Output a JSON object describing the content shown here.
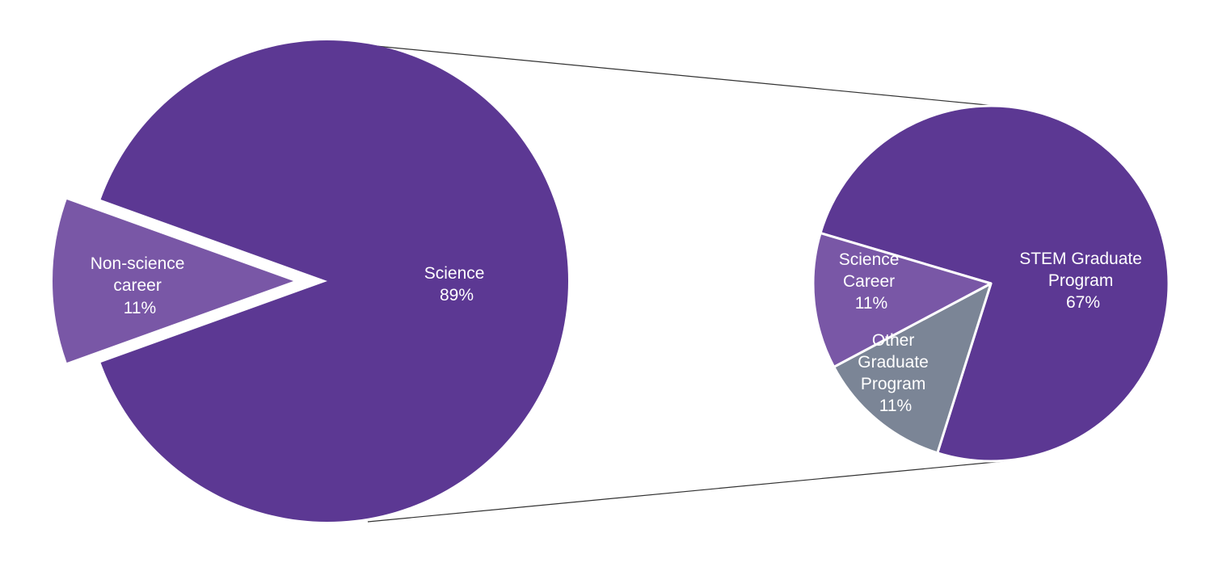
{
  "chart_data": [
    {
      "type": "pie",
      "title": "",
      "slices": [
        {
          "label": "Science",
          "value": 89,
          "value_label": "89%",
          "color": "#5c3893"
        },
        {
          "label": "Non-science career",
          "value": 11,
          "value_label": "11%",
          "color": "#7957a6",
          "exploded": true
        }
      ]
    },
    {
      "type": "pie",
      "title": "",
      "breakdown_of": "Science",
      "slices": [
        {
          "label": "STEM Graduate Program",
          "value": 67,
          "value_label": "67%",
          "color": "#5c3893"
        },
        {
          "label": "Other Graduate Program",
          "value": 11,
          "value_label": "11%",
          "color": "#7b8596"
        },
        {
          "label": "Science Career",
          "value": 11,
          "value_label": "11%",
          "color": "#7957a6"
        }
      ]
    }
  ],
  "colors": {
    "background": "#ffffff",
    "connector": "#333333",
    "slice_border": "#ffffff"
  }
}
